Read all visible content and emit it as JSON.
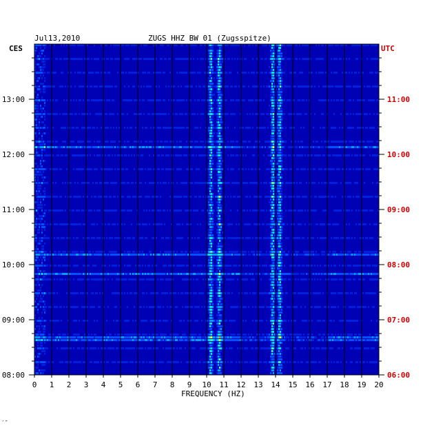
{
  "header": {
    "date": "Jul13,2010",
    "station_title": "ZUGS HHZ BW 01 (Zugsspitze)"
  },
  "left_axis_title": "CES",
  "right_axis_title": "UTC",
  "footer_mark": "′″",
  "colors": {
    "background": "#0000b4",
    "left_labels": "#000000",
    "right_labels": "#d00000",
    "grid": "#000000"
  },
  "chart_data": {
    "type": "heatmap",
    "title": "ZUGS HHZ BW 01 (Zugsspitze)",
    "xlabel": "FREQUENCY (HZ)",
    "xlim": [
      0,
      20
    ],
    "x_ticks": [
      "0",
      "1",
      "2",
      "3",
      "4",
      "5",
      "6",
      "7",
      "8",
      "9",
      "10",
      "11",
      "12",
      "13",
      "14",
      "15",
      "16",
      "17",
      "18",
      "19",
      "20"
    ],
    "left_time_labels": [
      "13:00",
      "12:00",
      "11:00",
      "10:00",
      "09:00",
      "08:00"
    ],
    "right_time_labels": [
      "11:00",
      "10:00",
      "09:00",
      "08:00",
      "07:00",
      "06:00"
    ],
    "time_ticks_hours": [
      13,
      12,
      11,
      10,
      9,
      8
    ],
    "time_range_cet": [
      "08:00",
      "13:44"
    ],
    "grid": true,
    "colormap": [
      "#0000b4",
      "#0020e0",
      "#0050ff",
      "#00a0ff",
      "#00e8ff",
      "#60ff90",
      "#ffff00",
      "#ff8000",
      "#ff0000"
    ],
    "dominant_frequency_bands_hz": [
      10.2,
      10.7,
      13.8,
      14.2
    ],
    "notable_rows_hours_cet": [
      12.14,
      8.66,
      10.2,
      9.86
    ]
  }
}
